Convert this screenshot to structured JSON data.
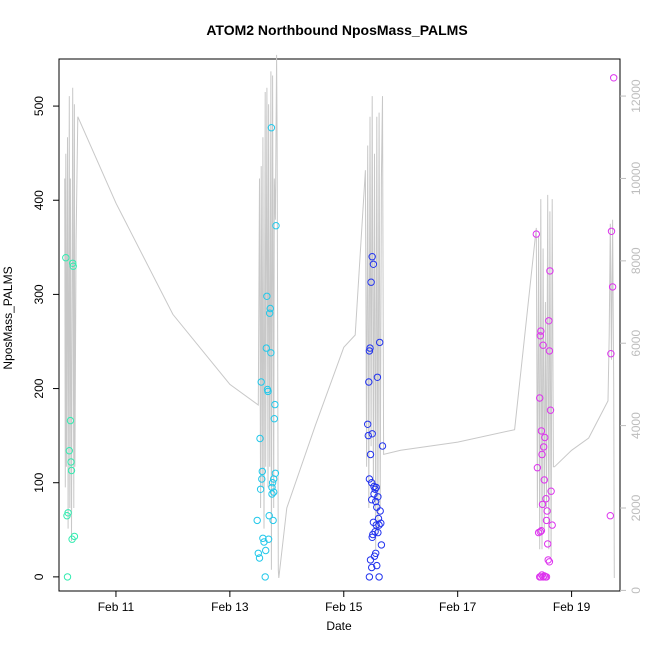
{
  "chart_data": {
    "type": "scatter",
    "title": "ATOM2 Northbound NposMass_PALMS",
    "xlabel": "Date",
    "ylabel": "NposMass_PALMS",
    "x_unit": "day of February",
    "xlim": [
      10.0,
      19.85
    ],
    "ylim": [
      -15,
      550
    ],
    "y2lim": [
      -15,
      12900
    ],
    "grid": false,
    "legend": "none",
    "x_ticks": [
      {
        "value": 11,
        "label": "Feb 11"
      },
      {
        "value": 13,
        "label": "Feb 13"
      },
      {
        "value": 15,
        "label": "Feb 15"
      },
      {
        "value": 17,
        "label": "Feb 17"
      },
      {
        "value": 19,
        "label": "Feb 19"
      }
    ],
    "y_ticks": [
      0,
      100,
      200,
      300,
      400,
      500
    ],
    "y2_ticks": [
      0,
      2000,
      4000,
      6000,
      8000,
      10000,
      12000
    ],
    "line_color": "#c8c8c8",
    "point_colors": [
      "#33ebb0",
      "#22c8ea",
      "#2233ee",
      "#7733ee",
      "#dd33ee"
    ],
    "points": [
      [
        10.12,
        339
      ],
      [
        10.16,
        68
      ],
      [
        10.14,
        65
      ],
      [
        10.18,
        134
      ],
      [
        10.2,
        166
      ],
      [
        10.21,
        122
      ],
      [
        10.22,
        113
      ],
      [
        10.24,
        333
      ],
      [
        10.25,
        330
      ],
      [
        10.23,
        40
      ],
      [
        10.27,
        43
      ],
      [
        10.15,
        0
      ],
      [
        13.48,
        60
      ],
      [
        13.5,
        25
      ],
      [
        13.52,
        20
      ],
      [
        13.53,
        147
      ],
      [
        13.55,
        207
      ],
      [
        13.57,
        112
      ],
      [
        13.56,
        104
      ],
      [
        13.58,
        41
      ],
      [
        13.6,
        37
      ],
      [
        13.62,
        0
      ],
      [
        13.64,
        243
      ],
      [
        13.65,
        298
      ],
      [
        13.66,
        199
      ],
      [
        13.67,
        197
      ],
      [
        13.7,
        280
      ],
      [
        13.72,
        238
      ],
      [
        13.71,
        285
      ],
      [
        13.73,
        477
      ],
      [
        13.75,
        100
      ],
      [
        13.74,
        95
      ],
      [
        13.76,
        60
      ],
      [
        13.77,
        90
      ],
      [
        13.78,
        168
      ],
      [
        13.79,
        183
      ],
      [
        13.8,
        110
      ],
      [
        13.81,
        373
      ],
      [
        13.68,
        40
      ],
      [
        13.69,
        65
      ],
      [
        13.74,
        88
      ],
      [
        13.77,
        104
      ],
      [
        13.54,
        93
      ],
      [
        13.63,
        28
      ],
      [
        15.42,
        162
      ],
      [
        15.44,
        207
      ],
      [
        15.45,
        240
      ],
      [
        15.46,
        243
      ],
      [
        15.47,
        130
      ],
      [
        15.48,
        313
      ],
      [
        15.5,
        340
      ],
      [
        15.52,
        332
      ],
      [
        15.43,
        150
      ],
      [
        15.45,
        104
      ],
      [
        15.49,
        100
      ],
      [
        15.5,
        152
      ],
      [
        15.53,
        96
      ],
      [
        15.55,
        93
      ],
      [
        15.56,
        80
      ],
      [
        15.57,
        55
      ],
      [
        15.58,
        74
      ],
      [
        15.59,
        212
      ],
      [
        15.61,
        62
      ],
      [
        15.63,
        249
      ],
      [
        15.64,
        70
      ],
      [
        15.65,
        57
      ],
      [
        15.66,
        34
      ],
      [
        15.68,
        139
      ],
      [
        15.49,
        82
      ],
      [
        15.51,
        45
      ],
      [
        15.5,
        42
      ],
      [
        15.55,
        48
      ],
      [
        15.6,
        47
      ],
      [
        15.52,
        58
      ],
      [
        15.53,
        88
      ],
      [
        15.56,
        25
      ],
      [
        15.45,
        0
      ],
      [
        15.47,
        18
      ],
      [
        15.49,
        10
      ],
      [
        15.54,
        22
      ],
      [
        15.58,
        12
      ],
      [
        15.62,
        0
      ],
      [
        15.57,
        95
      ],
      [
        15.6,
        85
      ],
      [
        15.62,
        55
      ],
      [
        18.38,
        364
      ],
      [
        18.4,
        116
      ],
      [
        18.42,
        47
      ],
      [
        18.44,
        190
      ],
      [
        18.45,
        256
      ],
      [
        18.46,
        261
      ],
      [
        18.47,
        155
      ],
      [
        18.48,
        130
      ],
      [
        18.49,
        77
      ],
      [
        18.5,
        246
      ],
      [
        18.51,
        138
      ],
      [
        18.52,
        103
      ],
      [
        18.53,
        148
      ],
      [
        18.55,
        83
      ],
      [
        18.56,
        60
      ],
      [
        18.57,
        70
      ],
      [
        18.6,
        272
      ],
      [
        18.61,
        240
      ],
      [
        18.62,
        325
      ],
      [
        18.63,
        177
      ],
      [
        18.64,
        91
      ],
      [
        18.66,
        55
      ],
      [
        18.58,
        35
      ],
      [
        18.59,
        18
      ],
      [
        18.61,
        16
      ],
      [
        18.45,
        48
      ],
      [
        18.47,
        49
      ],
      [
        18.44,
        0
      ],
      [
        18.46,
        0
      ],
      [
        18.48,
        2
      ],
      [
        18.5,
        0
      ],
      [
        18.52,
        1
      ],
      [
        18.54,
        0
      ],
      [
        18.56,
        0
      ],
      [
        19.68,
        65
      ],
      [
        19.69,
        237
      ],
      [
        19.7,
        367
      ],
      [
        19.72,
        308
      ],
      [
        19.74,
        530
      ]
    ],
    "line_days": [
      [
        10.1,
        10.11,
        10.12,
        10.13,
        10.15,
        10.16,
        10.18,
        10.19,
        10.2,
        10.22,
        10.24,
        10.26,
        10.27,
        10.28,
        10.3,
        10.33,
        11.0,
        12.0,
        13.0,
        13.5,
        13.52,
        13.54,
        13.55,
        13.57,
        13.58,
        13.6,
        13.62,
        13.63,
        13.65,
        13.67,
        13.68,
        13.7,
        13.72,
        13.73,
        13.75,
        13.77,
        13.78,
        13.8,
        13.82,
        13.83,
        13.85,
        13.86,
        14.0,
        14.5,
        15.0,
        15.2,
        15.38,
        15.4,
        15.42,
        15.44,
        15.46,
        15.48,
        15.5,
        15.52,
        15.54,
        15.56,
        15.58,
        15.6,
        15.62,
        15.64,
        15.66,
        15.68,
        15.7,
        16.0,
        17.0,
        18.0,
        18.38,
        18.4,
        18.42,
        18.44,
        18.46,
        18.48,
        18.5,
        18.52,
        18.54,
        18.56,
        18.58,
        18.6,
        18.62,
        18.64,
        18.66,
        18.68,
        18.7,
        19.0,
        19.3,
        19.64,
        19.66,
        19.68,
        19.7,
        19.72,
        19.74,
        19.75
      ]
    ],
    "line_values": [
      [
        10000,
        2500,
        10600,
        3000,
        11000,
        1500,
        12000,
        2000,
        10000,
        1200,
        12200,
        2000,
        11800,
        3000,
        8500,
        11500,
        9400,
        6700,
        5000,
        4500,
        10000,
        2000,
        10300,
        2500,
        11000,
        1500,
        12100,
        3000,
        12200,
        2500,
        11800,
        3000,
        12600,
        500,
        12500,
        2000,
        10000,
        9000,
        13000,
        11000,
        500,
        300,
        2000,
        4000,
        5900,
        6200,
        10200,
        3000,
        10800,
        2000,
        11500,
        3500,
        12000,
        2500,
        10600,
        1000,
        11500,
        1500,
        11600,
        2000,
        10000,
        12000,
        3300,
        3400,
        3600,
        3900,
        8800,
        2000,
        8600,
        1000,
        9500,
        1000,
        8300,
        1500,
        7000,
        2000,
        9600,
        1000,
        9200,
        800,
        9500,
        3000,
        3000,
        3400,
        3700,
        4600,
        6200,
        8900,
        5600,
        9000,
        5000,
        300
      ]
    ]
  }
}
